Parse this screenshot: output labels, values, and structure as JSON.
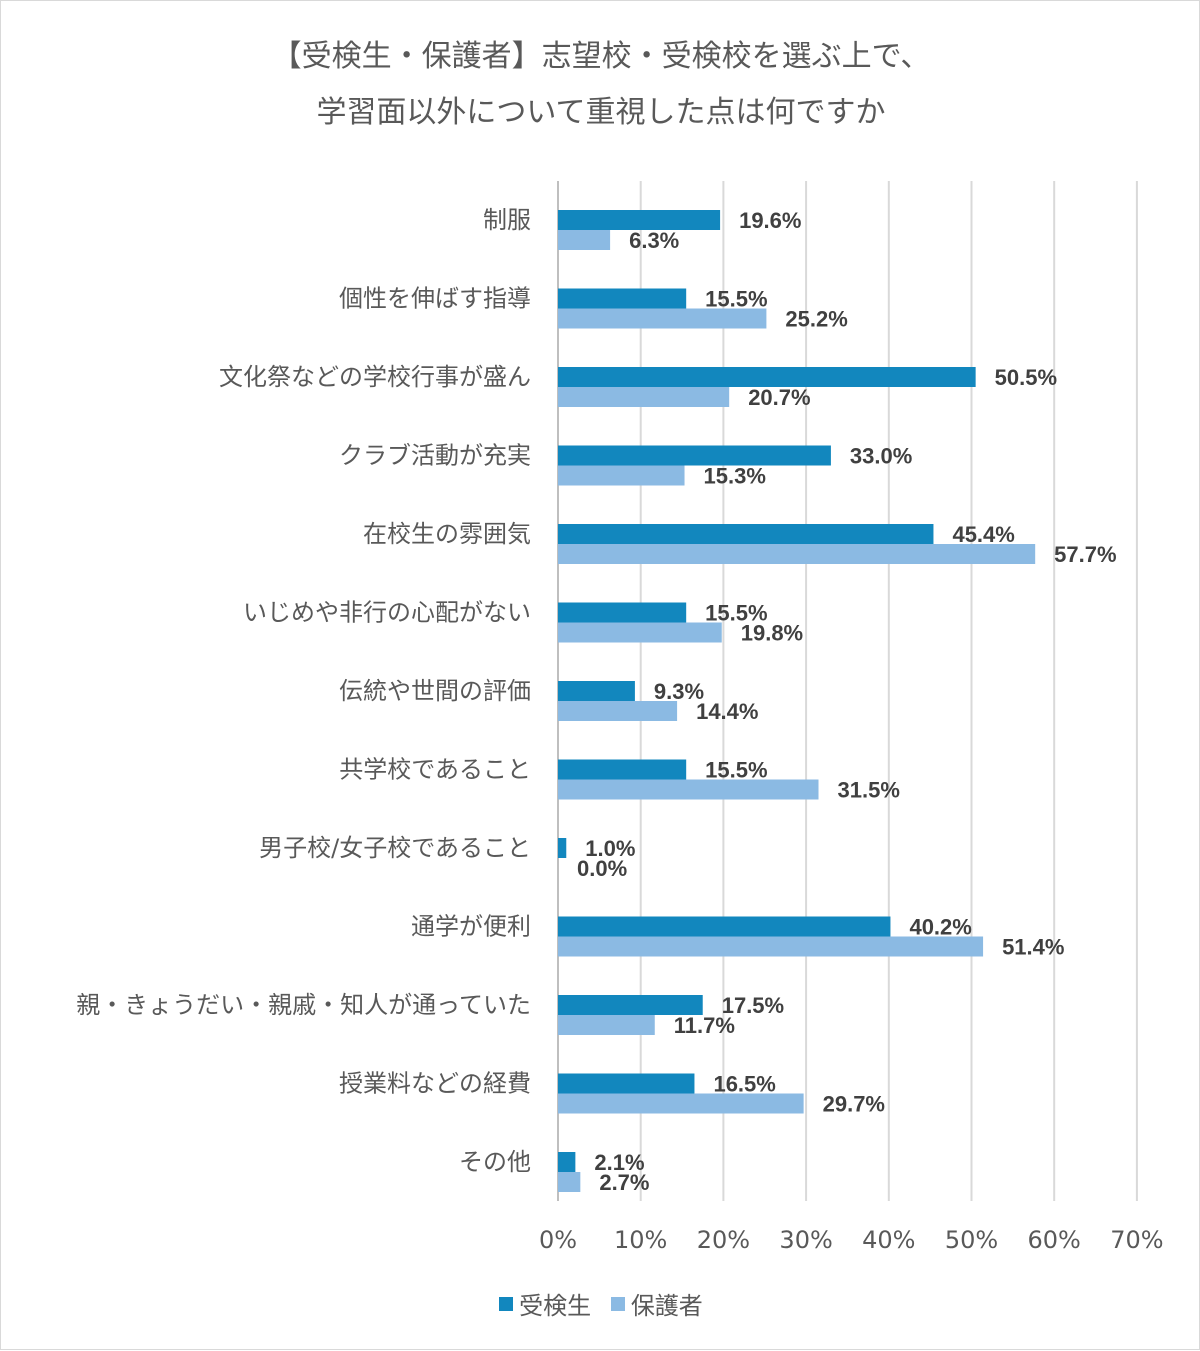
{
  "chart_data": {
    "type": "bar",
    "orientation": "horizontal",
    "title": [
      "【受検生・保護者】志望校・受検校を選ぶ上で、",
      "学習面以外について重視した点は何ですか"
    ],
    "categories": [
      "制服",
      "個性を伸ばす指導",
      "文化祭などの学校行事が盛ん",
      "クラブ活動が充実",
      "在校生の雰囲気",
      "いじめや非行の心配がない",
      "伝統や世間の評価",
      "共学校であること",
      "男子校/女子校であること",
      "通学が便利",
      "親・きょうだい・親戚・知人が通っていた",
      "授業料などの経費",
      "その他"
    ],
    "series": [
      {
        "name": "受検生",
        "color": "#1287be",
        "values": [
          19.6,
          15.5,
          50.5,
          33.0,
          45.4,
          15.5,
          9.3,
          15.5,
          1.0,
          40.2,
          17.5,
          16.5,
          2.1
        ],
        "labels": [
          "19.6%",
          "15.5%",
          "50.5%",
          "33.0%",
          "45.4%",
          "15.5%",
          "9.3%",
          "15.5%",
          "1.0%",
          "40.2%",
          "17.5%",
          "16.5%",
          "2.1%"
        ]
      },
      {
        "name": "保護者",
        "color": "#8bbae3",
        "values": [
          6.3,
          25.2,
          20.7,
          15.3,
          57.7,
          19.8,
          14.4,
          31.5,
          0.0,
          51.4,
          11.7,
          29.7,
          2.7
        ],
        "labels": [
          "6.3%",
          "25.2%",
          "20.7%",
          "15.3%",
          "57.7%",
          "19.8%",
          "14.4%",
          "31.5%",
          "0.0%",
          "51.4%",
          "11.7%",
          "29.7%",
          "2.7%"
        ]
      }
    ],
    "xlim": [
      0,
      70
    ],
    "xticks": [
      0,
      10,
      20,
      30,
      40,
      50,
      60,
      70
    ],
    "xtick_labels": [
      "0%",
      "10%",
      "20%",
      "30%",
      "40%",
      "50%",
      "60%",
      "70%"
    ],
    "grid": "vertical",
    "legend_position": "bottom"
  }
}
